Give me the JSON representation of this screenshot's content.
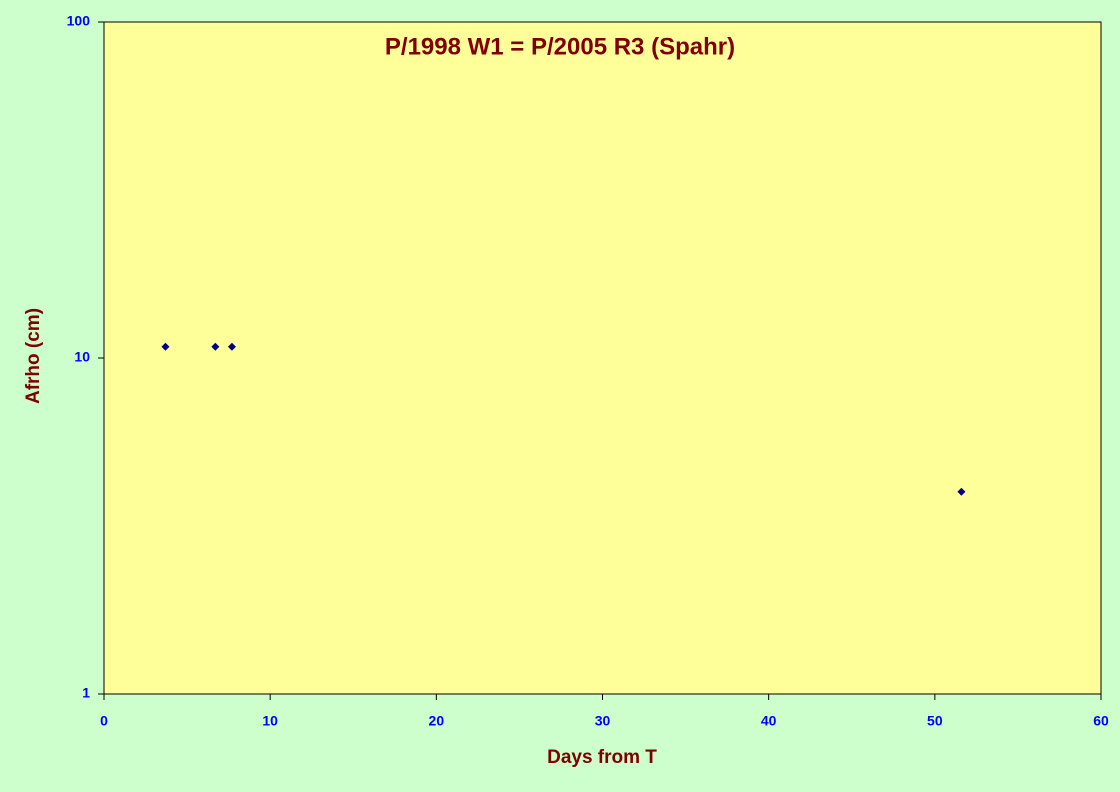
{
  "chart_data": {
    "type": "scatter",
    "title": "P/1998 W1 = P/2005 R3 (Spahr)",
    "x_label": "Days from T",
    "y_label": "Afrho (cm)",
    "x": [
      3.7,
      6.7,
      7.7,
      51.6
    ],
    "values": [
      10.8,
      10.8,
      10.8,
      4.0
    ],
    "color": "#000080",
    "xlim": [
      0,
      60
    ],
    "xticks": [
      0,
      10,
      20,
      30,
      40,
      50,
      60
    ],
    "ylim": [
      1,
      100
    ],
    "yticks": [
      1,
      10,
      100
    ],
    "y_log": true
  }
}
